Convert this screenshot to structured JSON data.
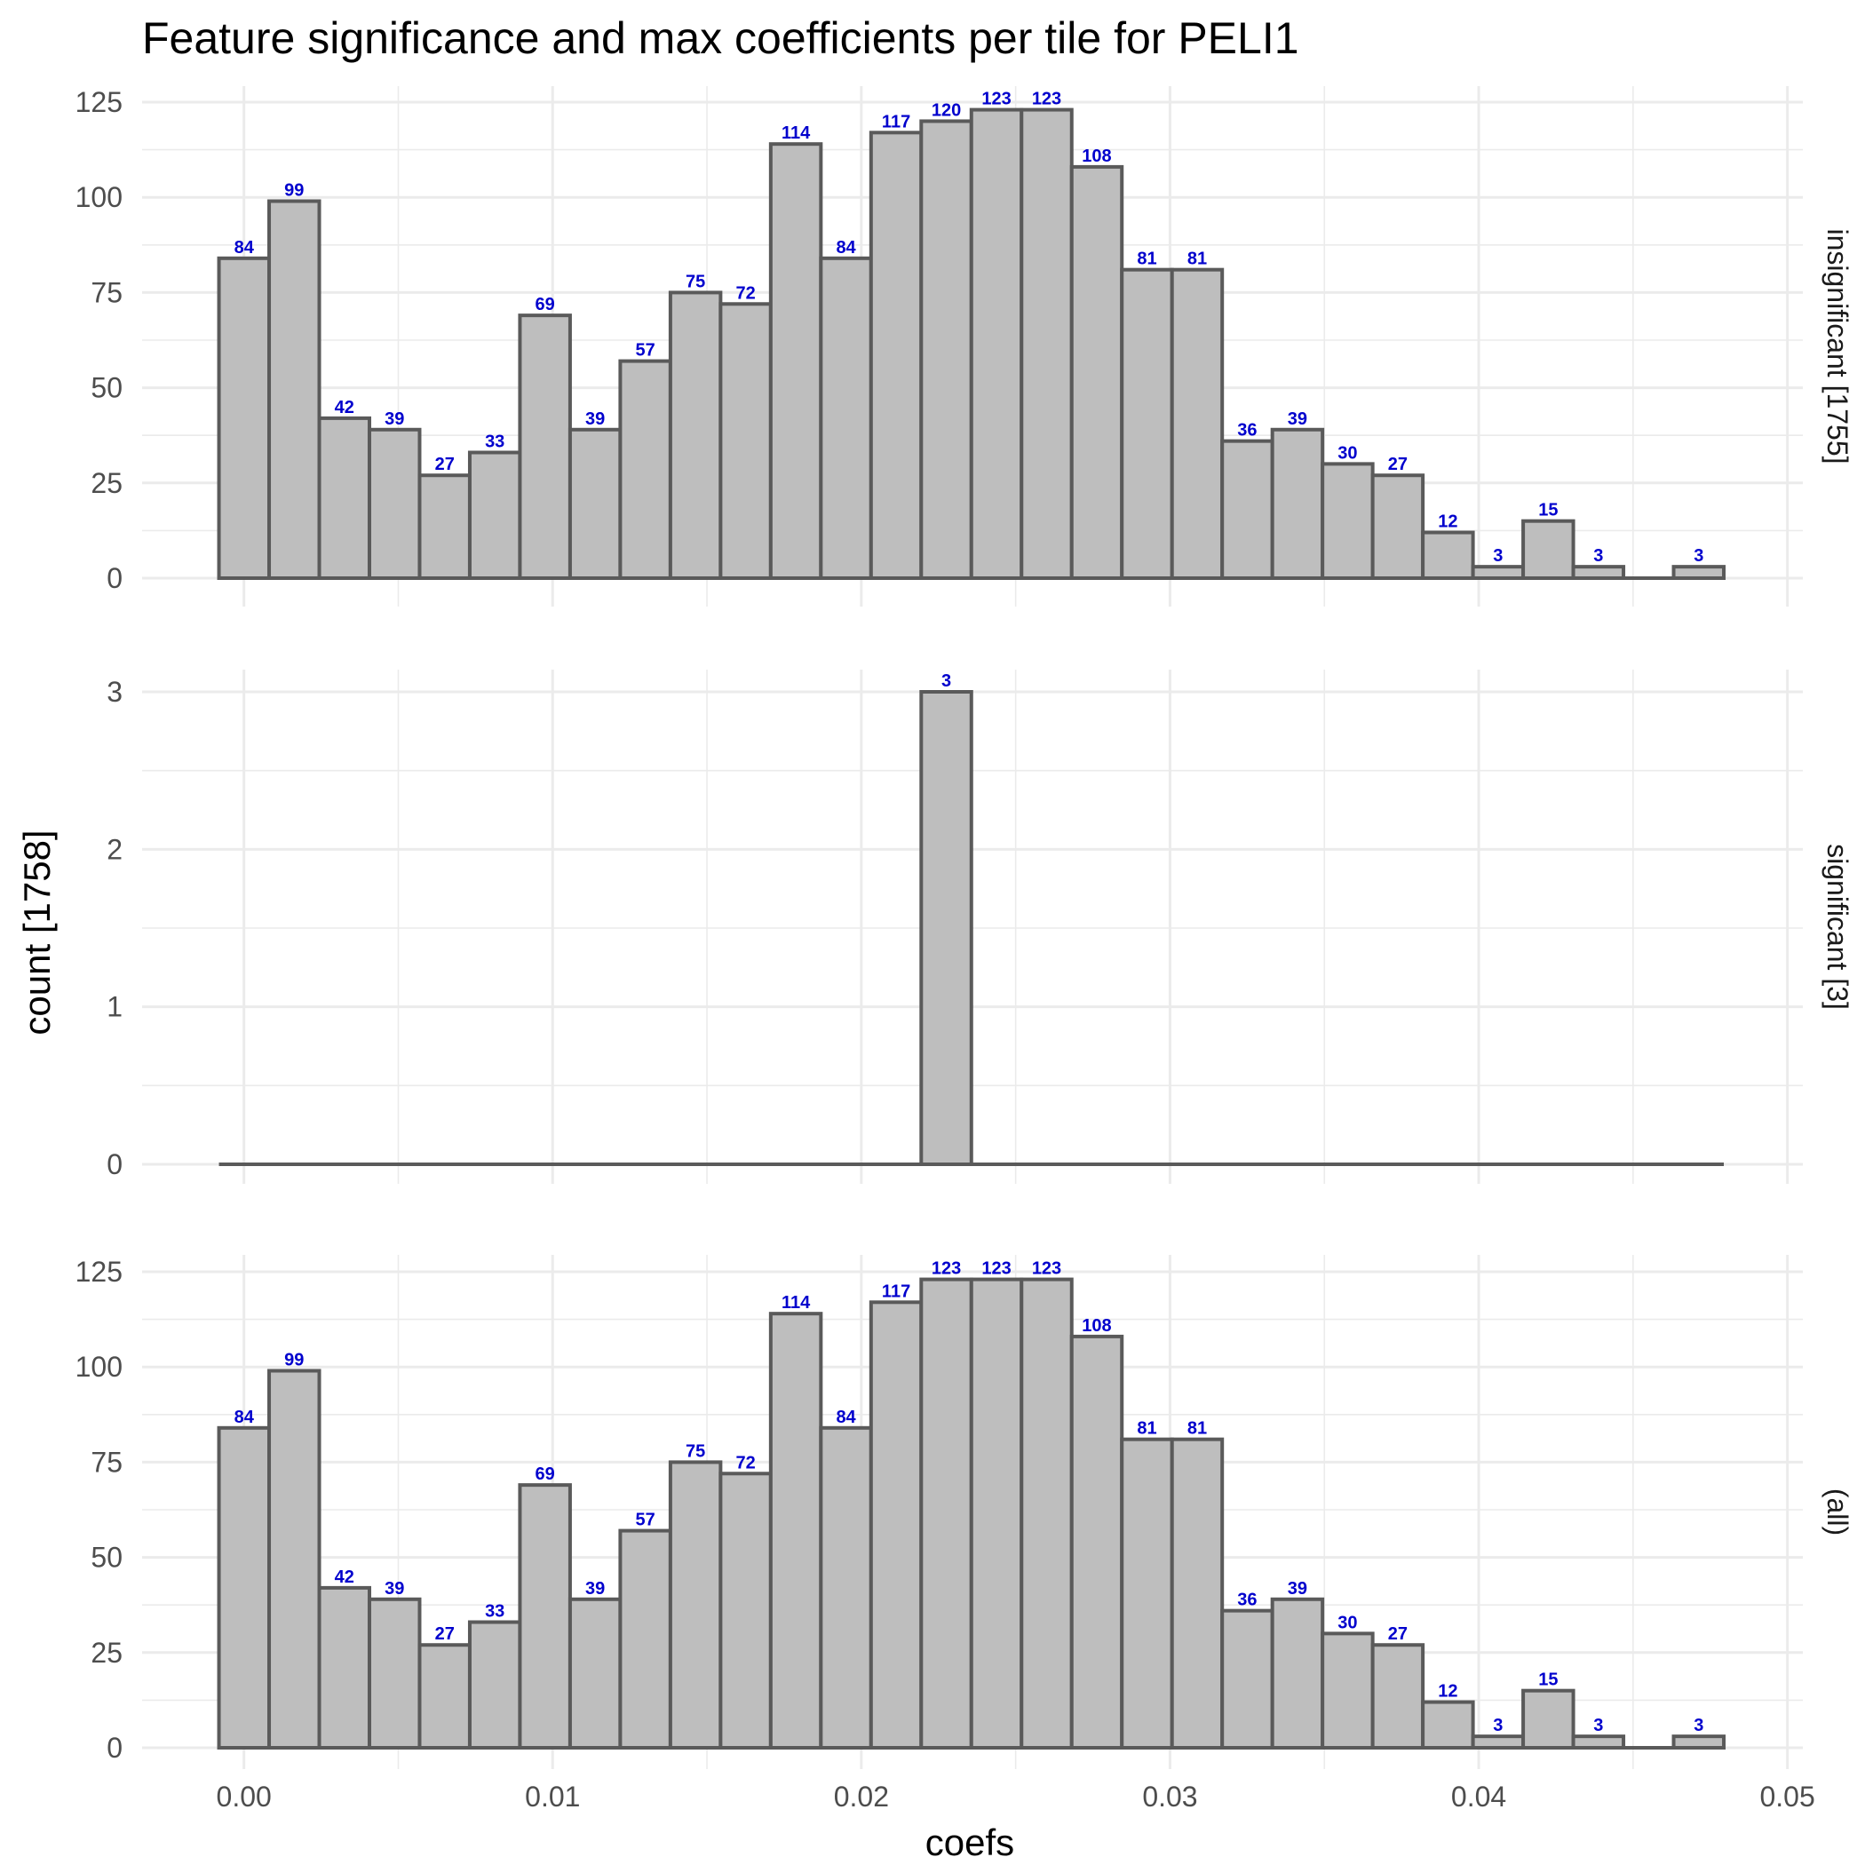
{
  "chart_data": {
    "type": "bar",
    "title": "Feature significance and max coefficients per tile for PELI1",
    "xlabel": "coefs",
    "ylabel": "count [1758]",
    "x_ticks": [
      "0.00",
      "0.01",
      "0.02",
      "0.03",
      "0.04",
      "0.05"
    ],
    "x_tick_values": [
      0,
      0.01,
      0.02,
      0.03,
      0.04,
      0.05
    ],
    "xlim": [
      -0.0033,
      0.0505
    ],
    "bin_width": 0.001625,
    "bin_start": -0.00081,
    "bins": 30,
    "grid": true,
    "label_color": "#0000cd",
    "bar_fill": "#bebebe",
    "bar_stroke": "#5a5a5a",
    "panels": [
      {
        "facet": "insignificant [1755]",
        "ylim": [
          0,
          125
        ],
        "y_ticks": [
          "0",
          "25",
          "50",
          "75",
          "100",
          "125"
        ],
        "y_tick_values": [
          0,
          25,
          50,
          75,
          100,
          125
        ],
        "counts": [
          84,
          99,
          42,
          39,
          27,
          33,
          69,
          39,
          57,
          75,
          72,
          114,
          84,
          117,
          120,
          123,
          123,
          108,
          81,
          81,
          36,
          39,
          30,
          27,
          12,
          3,
          15,
          3,
          0,
          3
        ]
      },
      {
        "facet": "significant [3]",
        "ylim": [
          0,
          3
        ],
        "y_ticks": [
          "0",
          "1",
          "2",
          "3"
        ],
        "y_tick_values": [
          0,
          1,
          2,
          3
        ],
        "counts": [
          0,
          0,
          0,
          0,
          0,
          0,
          0,
          0,
          0,
          0,
          0,
          0,
          0,
          0,
          3,
          0,
          0,
          0,
          0,
          0,
          0,
          0,
          0,
          0,
          0,
          0,
          0,
          0,
          0,
          0
        ]
      },
      {
        "facet": "(all)",
        "ylim": [
          0,
          125
        ],
        "y_ticks": [
          "0",
          "25",
          "50",
          "75",
          "100",
          "125"
        ],
        "y_tick_values": [
          0,
          25,
          50,
          75,
          100,
          125
        ],
        "counts": [
          84,
          99,
          42,
          39,
          27,
          33,
          69,
          39,
          57,
          75,
          72,
          114,
          84,
          117,
          123,
          123,
          123,
          108,
          81,
          81,
          36,
          39,
          30,
          27,
          12,
          3,
          15,
          3,
          0,
          3
        ]
      }
    ]
  }
}
